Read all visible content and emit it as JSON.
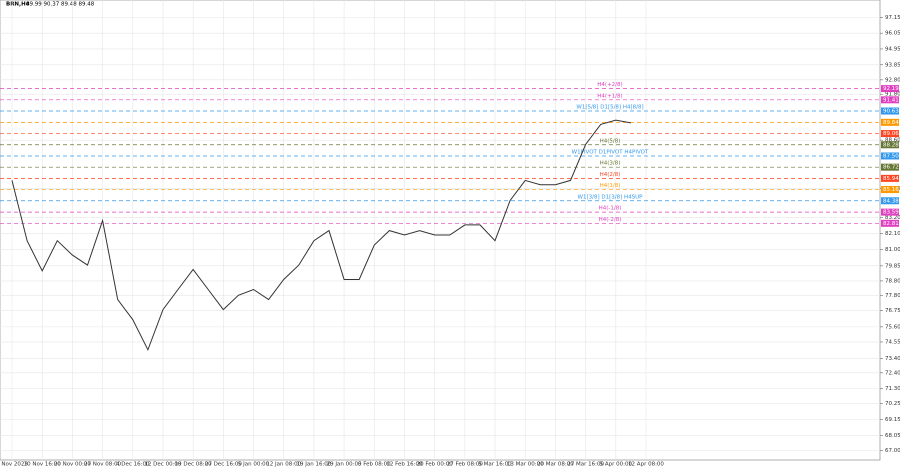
{
  "chart_data": {
    "type": "line",
    "title": "BRN,H4",
    "subtitle": "89.99 90.37 89.48 89.48",
    "categories": [
      "3 Nov 2023",
      null,
      "10 Nov 16:00",
      null,
      "20 Nov 00:00",
      null,
      "27 Nov 08:00",
      null,
      "4 Dec 16:00",
      null,
      "12 Dec 00:00",
      null,
      "19 Dec 08:00",
      null,
      "27 Dec 16:00",
      null,
      "5 Jan 00:00",
      null,
      "12 Jan 08:00",
      null,
      "19 Jan 16:00",
      null,
      "29 Jan 00:00",
      null,
      "5 Feb 08:00",
      null,
      "12 Feb 16:00",
      null,
      "20 Feb 00:00",
      null,
      "27 Feb 08:00",
      null,
      "5 Mar 16:00",
      null,
      "13 Mar 00:00",
      null,
      "20 Mar 08:00",
      null,
      "27 Mar 16:00",
      null,
      "5 Apr 00:00",
      null,
      "12 Apr 08:00"
    ],
    "series": [
      {
        "name": "BRN,H4",
        "color": "#333333",
        "values": [
          85.8,
          81.6,
          79.5,
          81.6,
          80.6,
          79.9,
          83.0,
          77.5,
          76.1,
          74.0,
          76.8,
          78.2,
          79.6,
          78.2,
          76.8,
          77.8,
          78.2,
          77.5,
          78.9,
          79.9,
          81.6,
          82.3,
          78.9,
          78.9,
          81.3,
          82.3,
          82.0,
          82.3,
          82.0,
          82.0,
          82.7,
          82.7,
          81.6,
          84.4,
          85.8,
          85.5,
          85.5,
          85.8,
          88.3,
          89.7,
          90.0,
          89.8,
          null
        ]
      }
    ],
    "levels": [
      {
        "name": "H4(+2/8)",
        "value": 92.19,
        "value_label": "92.19",
        "color": "#e040c0"
      },
      {
        "name": "H4(+1/8)",
        "value": 91.41,
        "value_label": "91.41",
        "color": "#e040c0"
      },
      {
        "name": "W1[5/8] D1[5/8] H4[8/8]",
        "value": 90.63,
        "value_label": "90.63",
        "color": "#3399ee"
      },
      {
        "name": null,
        "value": 89.84,
        "value_label": "89.84",
        "color": "#ff9900"
      },
      {
        "name": null,
        "value": 89.06,
        "value_label": "89.06",
        "color": "#ff4422"
      },
      {
        "name": "H4(5/8)",
        "value": 88.28,
        "value_label": "88.28",
        "color": "#667733"
      },
      {
        "name": "W1PIVOT D1PIVOT H4PIVOT",
        "value": 87.5,
        "value_label": "87.50",
        "color": "#3399ee"
      },
      {
        "name": "H4(3/8)",
        "value": 86.72,
        "value_label": "86.72",
        "color": "#667733"
      },
      {
        "name": "H4(2/8)",
        "value": 85.94,
        "value_label": "85.94",
        "color": "#ff4422"
      },
      {
        "name": "H4(1/8)",
        "value": 85.16,
        "value_label": "85.16",
        "color": "#ff9900"
      },
      {
        "name": "W1[3/8] D1[3/8] H4SUP",
        "value": 84.38,
        "value_label": "84.38",
        "color": "#3399ee"
      },
      {
        "name": "H4(-1/8)",
        "value": 83.59,
        "value_label": "83.59",
        "color": "#e040c0"
      },
      {
        "name": "H4(-2/8)",
        "value": 82.81,
        "value_label": "82.81",
        "color": "#e040c0"
      }
    ],
    "ylim": [
      66.33,
      98.36
    ],
    "yticks": [
      97.15,
      96.05,
      94.95,
      93.85,
      {
        "value": 92.8,
        "label": "92.80"
      },
      {
        "value": 91.8,
        "label": "91.80"
      },
      {
        "value": 88.6,
        "label": "88.60"
      },
      85.25,
      {
        "value": 83.2,
        "label": "83.20"
      },
      {
        "value": 82.1,
        "label": "82.10"
      },
      {
        "value": 81.0,
        "label": "81.00"
      },
      79.85,
      {
        "value": 78.8,
        "label": "78.80"
      },
      {
        "value": 77.8,
        "label": "77.80"
      },
      76.75,
      {
        "value": 75.6,
        "label": "75.60"
      },
      74.55,
      {
        "value": 73.4,
        "label": "73.40"
      },
      {
        "value": 72.4,
        "label": "72.40"
      },
      {
        "value": 71.3,
        "label": "71.30"
      },
      70.25,
      69.15,
      68.05,
      {
        "value": 67.0,
        "label": "67.00"
      }
    ],
    "grid": true
  }
}
